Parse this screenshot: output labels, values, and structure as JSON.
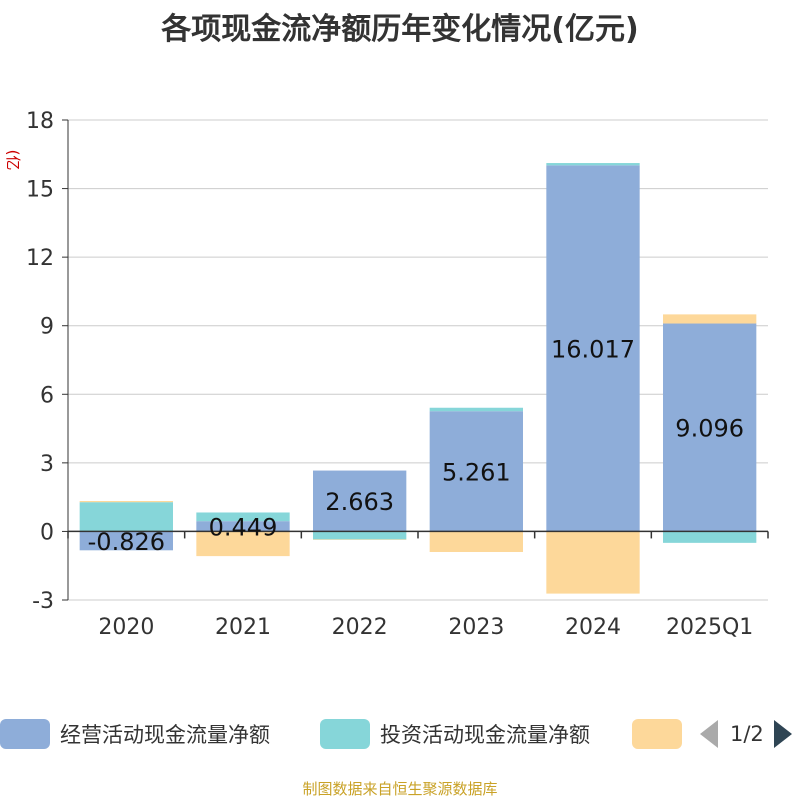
{
  "title": "各项现金流净额历年变化情况(亿元)",
  "footer": "制图数据来自恒生聚源数据库",
  "legend": {
    "items": [
      {
        "name": "经营活动现金流量净额",
        "color": "#8eadd9"
      },
      {
        "name": "投资活动现金流量净额",
        "color": "#86d6d9"
      },
      {
        "name": "",
        "color": "#fdd89a"
      }
    ],
    "page_indicator": "1/2"
  },
  "chart_data": {
    "type": "bar",
    "stacked": true,
    "categories": [
      "2020",
      "2021",
      "2022",
      "2023",
      "2024",
      "2025Q1"
    ],
    "ylabel": "(亿元)",
    "ylim": [
      -3,
      18
    ],
    "yticks": [
      -3,
      0,
      3,
      6,
      9,
      12,
      15,
      18
    ],
    "grid": true,
    "legend_position": "bottom",
    "series": [
      {
        "name": "经营活动现金流量净额",
        "color": "#8eadd9",
        "values": [
          -0.826,
          0.449,
          2.663,
          5.261,
          16.017,
          9.096
        ],
        "labels": [
          "-0.826",
          "0.449",
          "2.663",
          "5.261",
          "16.017",
          "9.096"
        ]
      },
      {
        "name": "投资活动现金流量净额",
        "color": "#86d6d9",
        "values": [
          1.28,
          0.38,
          -0.35,
          0.15,
          0.1,
          -0.5
        ]
      },
      {
        "name": "",
        "color": "#fdd89a",
        "values": [
          0.05,
          -1.08,
          -0.02,
          -0.9,
          -2.72,
          0.4
        ]
      }
    ]
  }
}
